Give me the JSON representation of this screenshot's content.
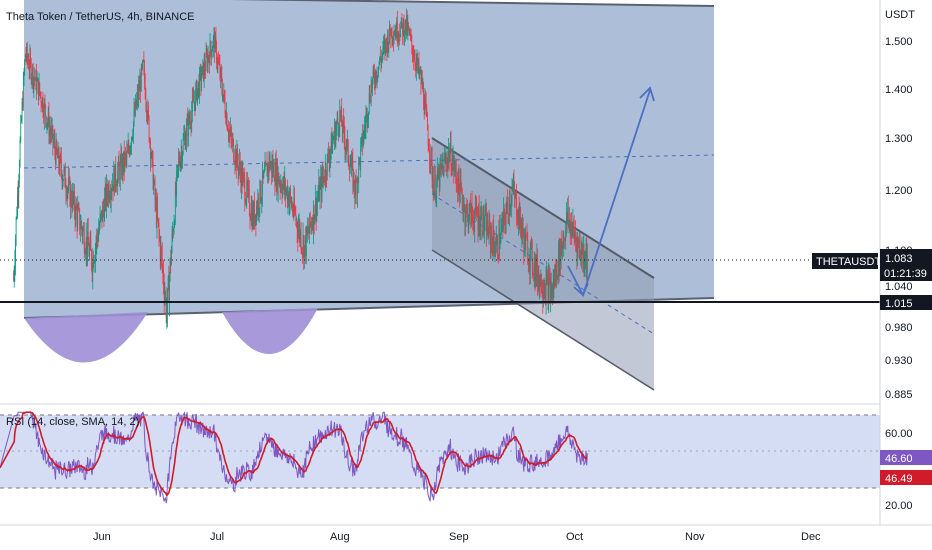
{
  "header": {
    "title": "Theta Token / TetherUS, 4h, BINANCE"
  },
  "price_axis": {
    "currency": "USDT",
    "ticks": [
      "1.500",
      "1.400",
      "1.300",
      "1.200",
      "1.100",
      "1.040",
      "0.980",
      "0.930",
      "0.885"
    ]
  },
  "tags": {
    "symbol": "THETAUSDT",
    "price": "1.083",
    "countdown": "01:21:39",
    "level": "1.015"
  },
  "rsi": {
    "title": "RSI (14, close, SMA, 14, 2)",
    "ticks": [
      "60.00",
      "20.00"
    ],
    "value": "46.60",
    "sma_value": "46.49"
  },
  "time_axis": {
    "ticks": [
      "Jun",
      "Jul",
      "Aug",
      "Sep",
      "Oct",
      "Nov",
      "Dec"
    ]
  },
  "colors": {
    "bull": "#089981",
    "bear": "#f23645",
    "channel_fill": "#9fb4d1",
    "bowl_fill": "#9e8fd6",
    "arrow": "#4a6fc4",
    "rsi_line": "#7e57c2",
    "rsi_sma": "#d11a2a",
    "rsi_band": "#c9d5f0"
  },
  "chart_data": {
    "type": "candlestick",
    "symbol": "THETAUSDT",
    "interval": "4h",
    "ylim": [
      0.86,
      1.56
    ],
    "x_range": [
      "2023-05-10",
      "2023-12-31"
    ],
    "price_path": [
      {
        "date": "2023-05-10",
        "price": 1.05
      },
      {
        "date": "2023-05-13",
        "price": 1.47
      },
      {
        "date": "2023-05-17",
        "price": 1.38
      },
      {
        "date": "2023-05-21",
        "price": 1.26
      },
      {
        "date": "2023-05-26",
        "price": 1.16
      },
      {
        "date": "2023-05-30",
        "price": 1.08
      },
      {
        "date": "2023-06-03",
        "price": 1.2
      },
      {
        "date": "2023-06-08",
        "price": 1.26
      },
      {
        "date": "2023-06-12",
        "price": 1.44
      },
      {
        "date": "2023-06-15",
        "price": 1.18
      },
      {
        "date": "2023-06-18",
        "price": 1.0
      },
      {
        "date": "2023-06-21",
        "price": 1.25
      },
      {
        "date": "2023-06-26",
        "price": 1.4
      },
      {
        "date": "2023-06-30",
        "price": 1.5
      },
      {
        "date": "2023-07-04",
        "price": 1.3
      },
      {
        "date": "2023-07-10",
        "price": 1.15
      },
      {
        "date": "2023-07-14",
        "price": 1.25
      },
      {
        "date": "2023-07-19",
        "price": 1.19
      },
      {
        "date": "2023-07-23",
        "price": 1.1
      },
      {
        "date": "2023-07-27",
        "price": 1.2
      },
      {
        "date": "2023-08-01",
        "price": 1.34
      },
      {
        "date": "2023-08-05",
        "price": 1.2
      },
      {
        "date": "2023-08-09",
        "price": 1.4
      },
      {
        "date": "2023-08-14",
        "price": 1.52
      },
      {
        "date": "2023-08-18",
        "price": 1.53
      },
      {
        "date": "2023-08-22",
        "price": 1.4
      },
      {
        "date": "2023-08-25",
        "price": 1.2
      },
      {
        "date": "2023-08-29",
        "price": 1.27
      },
      {
        "date": "2023-09-02",
        "price": 1.16
      },
      {
        "date": "2023-09-06",
        "price": 1.15
      },
      {
        "date": "2023-09-10",
        "price": 1.1
      },
      {
        "date": "2023-09-14",
        "price": 1.2
      },
      {
        "date": "2023-09-17",
        "price": 1.11
      },
      {
        "date": "2023-09-21",
        "price": 1.05
      },
      {
        "date": "2023-09-24",
        "price": 1.03
      },
      {
        "date": "2023-09-28",
        "price": 1.15
      },
      {
        "date": "2023-10-01",
        "price": 1.1
      },
      {
        "date": "2023-10-03",
        "price": 1.083
      }
    ],
    "last_price": 1.083,
    "horizontal_levels": [
      1.015
    ],
    "projection": [
      {
        "date": "2023-10-03",
        "price": 1.083
      },
      {
        "date": "2023-10-04",
        "price": 1.03
      },
      {
        "date": "2023-10-22",
        "price": 1.4
      }
    ],
    "rsi": {
      "ylim": [
        10,
        75
      ],
      "upper_band": 70,
      "lower_band": 30,
      "last_value": 46.6,
      "sma_last_value": 46.49
    }
  }
}
